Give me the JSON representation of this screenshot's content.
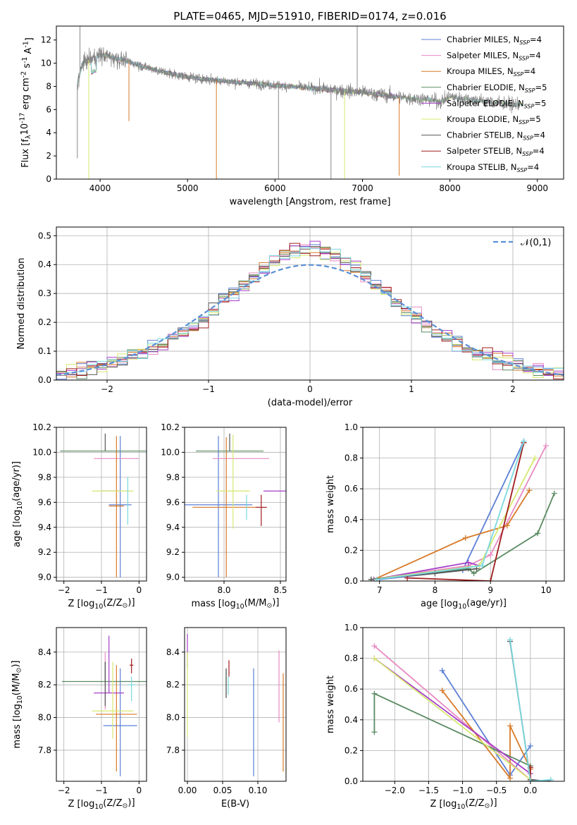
{
  "figure": {
    "title": "PLATE=0465, MJD=51910, FIBERID=0174, z=0.016"
  },
  "series": [
    {
      "name": "Chabrier MILES, N$_{SSP}$=4",
      "label": "Chabrier MILES, N",
      "sub": "SSP",
      "n": "=4",
      "color": "#5b7fd6"
    },
    {
      "name": "Salpeter MILES, N$_{SSP}$=4",
      "label": "Salpeter MILES, N",
      "sub": "SSP",
      "n": "=4",
      "color": "#e88ac2"
    },
    {
      "name": "Kroupa MILES, N$_{SSP}$=4",
      "label": "Kroupa MILES, N",
      "sub": "SSP",
      "n": "=4",
      "color": "#d77a28"
    },
    {
      "name": "Chabrier ELODIE, N$_{SSP}$=5",
      "label": "Chabrier ELODIE, N",
      "sub": "SSP",
      "n": "=5",
      "color": "#5a8a62"
    },
    {
      "name": "Salpeter ELODIE, N$_{SSP}$=5",
      "label": "Salpeter ELODIE, N",
      "sub": "SSP",
      "n": "=5",
      "color": "#a63ec8"
    },
    {
      "name": "Kroupa ELODIE, N$_{SSP}$=5",
      "label": "Kroupa ELODIE, N",
      "sub": "SSP",
      "n": "=5",
      "color": "#d6e870"
    },
    {
      "name": "Chabrier STELIB, N$_{SSP}$=4",
      "label": "Chabrier STELIB, N",
      "sub": "SSP",
      "n": "=4",
      "color": "#555555"
    },
    {
      "name": "Salpeter STELIB, N$_{SSP}$=4",
      "label": "Salpeter STELIB, N",
      "sub": "SSP",
      "n": "=4",
      "color": "#a01c1c"
    },
    {
      "name": "Kroupa STELIB, N$_{SSP}$=4",
      "label": "Kroupa STELIB, N",
      "sub": "SSP",
      "n": "=4",
      "color": "#7ad8df"
    }
  ],
  "chart_data": [
    {
      "id": "spectrum",
      "type": "line",
      "xlabel": "wavelength [Angstrom, rest frame]",
      "ylabel": "Flux [f$_\\lambda$10$^{-17}$ erg cm$^{-2}$ s$^{-1}$ A$^{-1}$]",
      "xlim": [
        3500,
        9300
      ],
      "ylim": [
        0,
        13.2
      ],
      "xticks": [
        4000,
        5000,
        6000,
        7000,
        8000,
        9000
      ],
      "yticks": [
        0,
        2,
        4,
        6,
        8,
        10,
        12
      ],
      "legend": "top-right",
      "continuum": [
        [
          3740,
          8.2
        ],
        [
          3800,
          10.0
        ],
        [
          3900,
          10.4
        ],
        [
          4000,
          10.7
        ],
        [
          4100,
          10.6
        ],
        [
          4300,
          10.2
        ],
        [
          4500,
          9.7
        ],
        [
          4800,
          9.1
        ],
        [
          5100,
          8.7
        ],
        [
          5500,
          8.4
        ],
        [
          6000,
          8.1
        ],
        [
          6500,
          7.8
        ],
        [
          7000,
          7.5
        ],
        [
          7200,
          7.3
        ],
        [
          7500,
          7.0
        ],
        [
          7700,
          6.9
        ],
        [
          7900,
          6.7
        ],
        [
          8000,
          7.1
        ],
        [
          8200,
          6.9
        ],
        [
          8500,
          6.6
        ],
        [
          8800,
          6.4
        ]
      ],
      "data_range": [
        3740,
        8800
      ],
      "model_ranges": [
        [
          3740,
          7420
        ],
        [
          3740,
          8830
        ],
        [
          3740,
          7440
        ],
        [
          3740,
          7430
        ],
        [
          3740,
          7430
        ],
        [
          3740,
          8830
        ],
        [
          3740,
          7430
        ],
        [
          3740,
          7430
        ],
        [
          3740,
          8830
        ]
      ]
    },
    {
      "id": "residuals",
      "type": "histogram",
      "xlabel": "(data-model)/error",
      "ylabel": "Normed distribution",
      "xlim": [
        -2.5,
        2.5
      ],
      "ylim": [
        0,
        0.53
      ],
      "xticks": [
        -2,
        -1,
        0,
        1,
        2
      ],
      "yticks": [
        0.0,
        0.1,
        0.2,
        0.3,
        0.4,
        0.5
      ],
      "legend": "top-right",
      "reference_label": "$\\mathcal{N}(0,1)$",
      "reference_color": "#5b8fd6",
      "bin_width": 0.1,
      "bin_start": -2.5
    },
    {
      "id": "age-vs-Z",
      "type": "errorbar",
      "xlabel": "Z [log$_{10}$(Z/Z$_\\odot$)]",
      "ylabel": "age  [log$_{10}$(age/yr)]",
      "xlim": [
        -2.2,
        0.2
      ],
      "ylim": [
        8.97,
        10.2
      ],
      "xticks": [
        -2,
        -1,
        0
      ],
      "yticks": [
        9.0,
        9.2,
        9.4,
        9.6,
        9.8,
        10.0,
        10.2
      ],
      "points": [
        {
          "x": -0.5,
          "xerr": 0.3,
          "y": 9.58,
          "yerr": [
            0.58,
            0.55
          ],
          "s": 0
        },
        {
          "x": -0.6,
          "xerr": 0.6,
          "y": 9.95,
          "yerr": [
            0.0,
            0.0
          ],
          "s": 1
        },
        {
          "x": -0.6,
          "xerr": 0.2,
          "y": 9.57,
          "yerr": [
            0.57,
            0.56
          ],
          "s": 2
        },
        {
          "x": -0.9,
          "xerr": 1.2,
          "y": 10.01,
          "yerr": [
            0.0,
            0.0
          ],
          "s": 3
        },
        {
          "x": -0.75,
          "xerr": 0.25,
          "y": 9.69,
          "yerr": [
            0.0,
            0.0
          ],
          "s": 4
        },
        {
          "x": -0.7,
          "xerr": 0.55,
          "y": 9.69,
          "yerr": [
            0.0,
            0.0
          ],
          "s": 5
        },
        {
          "x": -0.9,
          "xerr": 0.0,
          "y": 10.01,
          "yerr": [
            0.0,
            0.14
          ],
          "s": 6
        },
        {
          "x": -0.8,
          "xerr": 0.0,
          "y": 9.57,
          "yerr": [
            0.0,
            0.0
          ],
          "s": 7
        },
        {
          "x": -0.3,
          "xerr": 0.0,
          "y": 9.6,
          "yerr": [
            0.18,
            0.2
          ],
          "s": 8
        }
      ]
    },
    {
      "id": "age-vs-mass",
      "type": "errorbar",
      "xlabel": "mass [log$_{10}$(M/M$_\\odot$)]",
      "ylabel": "",
      "xlim": [
        7.65,
        8.55
      ],
      "ylim": [
        8.97,
        10.2
      ],
      "xticks": [
        8.0,
        8.5
      ],
      "yticks": [
        9.0,
        9.2,
        9.4,
        9.6,
        9.8,
        10.0,
        10.2
      ],
      "points": [
        {
          "x": 7.95,
          "xerr": 0.3,
          "y": 9.58,
          "yerr": [
            0.58,
            0.55
          ],
          "s": 0
        },
        {
          "x": 8.15,
          "xerr": 0.25,
          "y": 9.95,
          "yerr": [
            0.0,
            0.0
          ],
          "s": 1
        },
        {
          "x": 8.02,
          "xerr": 0.3,
          "y": 9.56,
          "yerr": [
            0.56,
            0.56
          ],
          "s": 2
        },
        {
          "x": 8.05,
          "xerr": 0.3,
          "y": 10.01,
          "yerr": [
            0.0,
            0.0
          ],
          "s": 3
        },
        {
          "x": 8.45,
          "xerr": 0.1,
          "y": 9.69,
          "yerr": [
            0.0,
            0.0
          ],
          "s": 4
        },
        {
          "x": 8.08,
          "xerr": 0.15,
          "y": 9.69,
          "yerr": [
            0.3,
            0.45
          ],
          "s": 5
        },
        {
          "x": 8.05,
          "xerr": 0.0,
          "y": 10.01,
          "yerr": [
            0.0,
            0.14
          ],
          "s": 6
        },
        {
          "x": 8.33,
          "xerr": 0.05,
          "y": 9.56,
          "yerr": [
            0.15,
            0.1
          ],
          "s": 7
        },
        {
          "x": 8.2,
          "xerr": 0.0,
          "y": 9.58,
          "yerr": [
            0.12,
            0.08
          ],
          "s": 8
        }
      ]
    },
    {
      "id": "weight-vs-age",
      "type": "line",
      "xlabel": "age  [log$_{10}$(age/yr)]",
      "ylabel": "mass weight",
      "xlim": [
        6.7,
        10.33
      ],
      "ylim": [
        0,
        1
      ],
      "xticks": [
        7,
        8,
        9,
        10
      ],
      "yticks": [
        0.0,
        0.2,
        0.4,
        0.6,
        0.8,
        1.0
      ],
      "series": [
        {
          "s": 0,
          "x": [
            7.0,
            8.5,
            9.6
          ],
          "y": [
            0.01,
            0.07,
            0.91
          ]
        },
        {
          "s": 1,
          "x": [
            6.85,
            8.6,
            9.0,
            10.0
          ],
          "y": [
            0.01,
            0.1,
            0.17,
            0.88
          ]
        },
        {
          "s": 2,
          "x": [
            6.9,
            8.55,
            9.3,
            9.7
          ],
          "y": [
            0.01,
            0.28,
            0.36,
            0.59
          ]
        },
        {
          "s": 3,
          "x": [
            6.85,
            8.6,
            8.7,
            9.85,
            10.15
          ],
          "y": [
            0.01,
            0.08,
            0.05,
            0.31,
            0.57
          ]
        },
        {
          "s": 4,
          "x": [
            6.9,
            8.6,
            8.8
          ],
          "y": [
            0.01,
            0.12,
            0.1
          ]
        },
        {
          "s": 5,
          "x": [
            6.85,
            8.8,
            9.8
          ],
          "y": [
            0.01,
            0.1,
            0.8
          ]
        },
        {
          "s": 6,
          "x": [
            6.85,
            8.0,
            8.75
          ],
          "y": [
            0.01,
            0.05,
            0.08
          ]
        },
        {
          "s": 7,
          "x": [
            7.5,
            9.0,
            9.6
          ],
          "y": [
            0.02,
            0.0,
            0.9
          ]
        },
        {
          "s": 8,
          "x": [
            6.95,
            8.85,
            9.6
          ],
          "y": [
            0.01,
            0.1,
            0.91
          ]
        }
      ]
    },
    {
      "id": "mass-vs-Z",
      "type": "errorbar",
      "xlabel": "Z [log$_{10}$(Z/Z$_\\odot$)]",
      "ylabel": "mass [log$_{10}$(M/M$_\\odot$)]",
      "xlim": [
        -2.2,
        0.2
      ],
      "ylim": [
        7.61,
        8.55
      ],
      "xticks": [
        -2,
        -1,
        0
      ],
      "yticks": [
        7.8,
        8.0,
        8.2,
        8.4
      ],
      "points": [
        {
          "x": -0.5,
          "xerr": 0.45,
          "y": 7.95,
          "yerr": [
            0.31,
            0.35
          ],
          "s": 0
        },
        {
          "x": -0.9,
          "xerr": 0.0,
          "y": 8.15,
          "yerr": [
            0.1,
            0.25
          ],
          "s": 1
        },
        {
          "x": -0.6,
          "xerr": 0.55,
          "y": 8.02,
          "yerr": [
            0.35,
            0.3
          ],
          "s": 2
        },
        {
          "x": -0.9,
          "xerr": 1.15,
          "y": 8.22,
          "yerr": [
            0.0,
            0.12
          ],
          "s": 3
        },
        {
          "x": -0.8,
          "xerr": 0.4,
          "y": 8.15,
          "yerr": [
            0.0,
            0.35
          ],
          "s": 4
        },
        {
          "x": -0.7,
          "xerr": 0.55,
          "y": 8.04,
          "yerr": [
            0.17,
            0.3
          ],
          "s": 5
        },
        {
          "x": -0.9,
          "xerr": 0.0,
          "y": 8.22,
          "yerr": [
            0.15,
            0.12
          ],
          "s": 6
        },
        {
          "x": -0.2,
          "xerr": 0.05,
          "y": 8.32,
          "yerr": [
            0.05,
            0.04
          ],
          "s": 7
        },
        {
          "x": -0.2,
          "xerr": 0.1,
          "y": 8.2,
          "yerr": [
            0.1,
            0.05
          ],
          "s": 8
        }
      ]
    },
    {
      "id": "mass-vs-ebv",
      "type": "errorbar",
      "xlabel": "E(B-V)",
      "ylabel": "",
      "xlim": [
        -0.004,
        0.14
      ],
      "ylim": [
        7.61,
        8.55
      ],
      "xticks": [
        0.0,
        0.05,
        0.1
      ],
      "yticks": [
        7.8,
        8.0,
        8.2,
        8.4
      ],
      "points": [
        {
          "x": 0.094,
          "xerr": 0.0,
          "y": 7.95,
          "yerr": [
            0.31,
            0.35
          ],
          "s": 0
        },
        {
          "x": 0.13,
          "xerr": 0.0,
          "y": 8.15,
          "yerr": [
            0.18,
            0.26
          ],
          "s": 1
        },
        {
          "x": 0.136,
          "xerr": 0.0,
          "y": 8.0,
          "yerr": [
            0.33,
            0.27
          ],
          "s": 2
        },
        {
          "x": 0.055,
          "xerr": 0.0,
          "y": 8.2,
          "yerr": [
            0.08,
            0.1
          ],
          "s": 3
        },
        {
          "x": 0.0,
          "xerr": 0.0,
          "y": 8.4,
          "yerr": [
            0.1,
            0.11
          ],
          "s": 4
        },
        {
          "x": 0.0,
          "xerr": 0.0,
          "y": 8.1,
          "yerr": [
            0.22,
            0.3
          ],
          "s": 5
        },
        {
          "x": 0.055,
          "xerr": 0.0,
          "y": 8.22,
          "yerr": [
            0.1,
            0.08
          ],
          "s": 6
        },
        {
          "x": 0.059,
          "xerr": 0.0,
          "y": 8.3,
          "yerr": [
            0.05,
            0.05
          ],
          "s": 7
        },
        {
          "x": 0.058,
          "xerr": 0.0,
          "y": 8.2,
          "yerr": [
            0.06,
            0.05
          ],
          "s": 8
        }
      ]
    },
    {
      "id": "weight-vs-Z",
      "type": "line",
      "xlabel": "Z [log$_{10}$(Z/Z$_\\odot$)]",
      "ylabel": "mass weight",
      "xlim": [
        -2.47,
        0.5
      ],
      "ylim": [
        0,
        1
      ],
      "xticks": [
        -2.0,
        -1.5,
        -1.0,
        -0.5,
        0.0
      ],
      "yticks": [
        0.0,
        0.2,
        0.4,
        0.6,
        0.8,
        1.0
      ],
      "series": [
        {
          "s": 0,
          "x": [
            -1.3,
            -0.3,
            0.0
          ],
          "y": [
            0.72,
            0.04,
            0.23
          ]
        },
        {
          "s": 1,
          "x": [
            -2.3,
            0.0
          ],
          "y": [
            0.88,
            0.01
          ]
        },
        {
          "s": 2,
          "x": [
            -1.3,
            -0.3,
            -0.3,
            0.0
          ],
          "y": [
            0.59,
            0.02,
            0.36,
            0.08
          ]
        },
        {
          "s": 3,
          "x": [
            -2.3,
            -2.3,
            0.0
          ],
          "y": [
            0.32,
            0.57,
            0.1
          ]
        },
        {
          "s": 4,
          "x": [
            -2.3,
            0.0
          ],
          "y": [
            0.8,
            0.05
          ]
        },
        {
          "s": 5,
          "x": [
            -2.3,
            0.0
          ],
          "y": [
            0.8,
            0.01
          ]
        },
        {
          "s": 6,
          "x": [
            -0.3,
            0.0,
            0.3
          ],
          "y": [
            0.91,
            0.01,
            0.0
          ]
        },
        {
          "s": 7,
          "x": [
            0.0,
            0.0
          ],
          "y": [
            0.0,
            0.09
          ]
        },
        {
          "s": 8,
          "x": [
            -0.3,
            0.0,
            0.3
          ],
          "y": [
            0.92,
            0.0,
            0.01
          ]
        }
      ]
    }
  ]
}
